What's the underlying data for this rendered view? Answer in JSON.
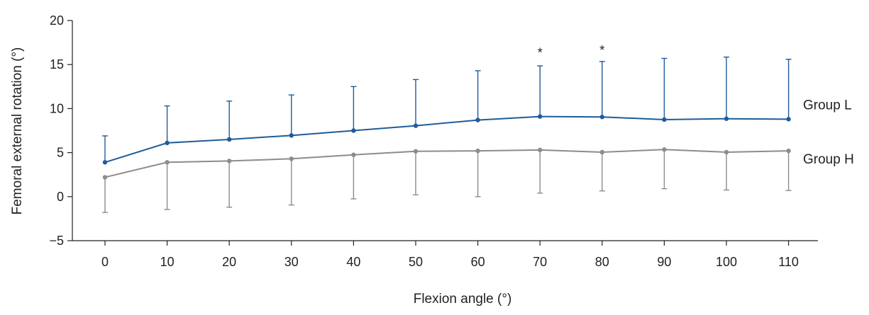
{
  "chart_data": {
    "type": "line",
    "title": "",
    "xlabel": "Flexion angle (°)",
    "ylabel": "Femoral external rotation (°)",
    "x": [
      0,
      10,
      20,
      30,
      40,
      50,
      60,
      70,
      80,
      90,
      100,
      110
    ],
    "x_ticks": [
      "0",
      "10",
      "20",
      "30",
      "40",
      "50",
      "60",
      "70",
      "80",
      "90",
      "100",
      "110"
    ],
    "y_ticks": [
      {
        "value": -5,
        "label": "−5"
      },
      {
        "value": 0,
        "label": "0"
      },
      {
        "value": 5,
        "label": "5"
      },
      {
        "value": 10,
        "label": "10"
      },
      {
        "value": 15,
        "label": "15"
      },
      {
        "value": 20,
        "label": "20"
      }
    ],
    "ylim": [
      -5,
      20
    ],
    "grid": false,
    "series": [
      {
        "name": "Group L",
        "color": "#1f5c99",
        "error_direction": "up",
        "values": [
          3.9,
          6.1,
          6.5,
          6.95,
          7.5,
          8.05,
          8.7,
          9.1,
          9.05,
          8.75,
          8.85,
          8.8
        ],
        "error_bars": [
          3.0,
          4.2,
          4.35,
          4.6,
          5.0,
          5.25,
          5.6,
          5.75,
          6.3,
          6.95,
          7.0,
          6.8
        ]
      },
      {
        "name": "Group H",
        "color": "#8c8c8c",
        "error_direction": "down",
        "values": [
          2.2,
          3.9,
          4.05,
          4.3,
          4.75,
          5.15,
          5.2,
          5.3,
          5.05,
          5.35,
          5.05,
          5.2
        ],
        "error_bars": [
          4.0,
          5.35,
          5.25,
          5.25,
          5.0,
          4.95,
          5.2,
          4.9,
          4.4,
          4.45,
          4.3,
          4.5
        ]
      }
    ],
    "annotations": [
      {
        "x": 70,
        "y": 16.5,
        "text": "*"
      },
      {
        "x": 80,
        "y": 16.8,
        "text": "*"
      }
    ]
  }
}
